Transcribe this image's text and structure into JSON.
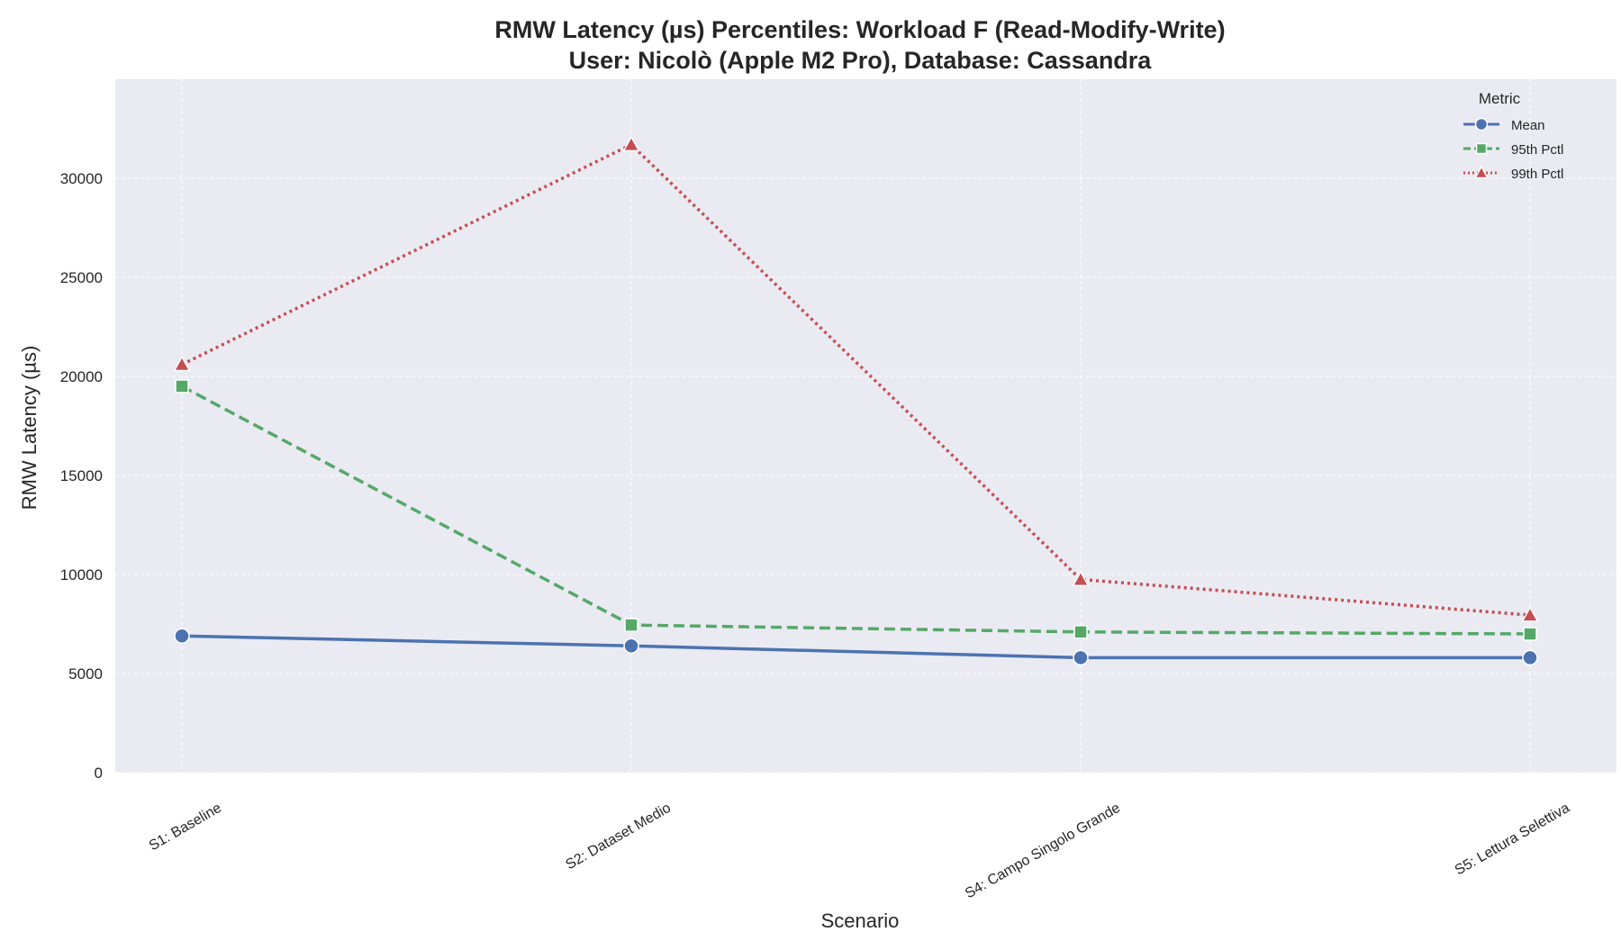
{
  "chart_data": {
    "type": "line",
    "title_line1": "RMW Latency (µs) Percentiles: Workload F (Read-Modify-Write)",
    "title_line2": "User: Nicolò (Apple M2 Pro), Database: Cassandra",
    "xlabel": "Scenario",
    "ylabel": "RMW Latency (µs)",
    "categories": [
      "S1: Baseline",
      "S2: Dataset Medio",
      "S4: Campo Singolo Grande",
      "S5: Lettura Selettiva"
    ],
    "ylim": [
      0,
      35000
    ],
    "yticks": [
      0,
      5000,
      10000,
      15000,
      20000,
      25000,
      30000
    ],
    "grid": true,
    "legend": {
      "title": "Metric",
      "placement": "top-right"
    },
    "series": [
      {
        "name": "Mean",
        "values": [
          6900,
          6400,
          5800,
          5800
        ],
        "color": "#4c72b0",
        "dash": "solid",
        "marker": "circle"
      },
      {
        "name": "95th Pctl",
        "values": [
          19500,
          7450,
          7100,
          7000
        ],
        "color": "#55a868",
        "dash": "dashed",
        "marker": "square"
      },
      {
        "name": "99th Pctl",
        "values": [
          20600,
          31700,
          9750,
          7950
        ],
        "color": "#c44e52",
        "dash": "dotted",
        "marker": "triangle"
      }
    ],
    "colors": {
      "plot_background": "#eaeaf2",
      "grid": "#ffffff"
    }
  }
}
